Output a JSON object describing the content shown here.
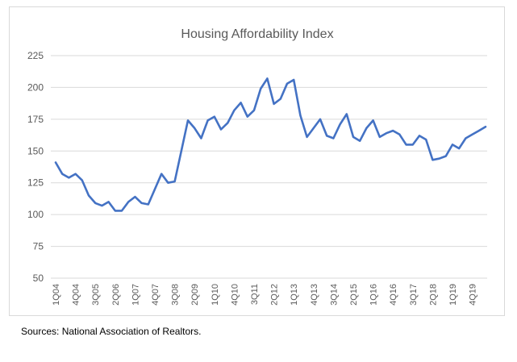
{
  "chart_data": {
    "type": "line",
    "title": "Housing Affordability Index",
    "xlabel": "",
    "ylabel": "",
    "ylim": [
      50,
      225
    ],
    "yticks": [
      50,
      75,
      100,
      125,
      150,
      175,
      200,
      225
    ],
    "grid": true,
    "legend": "none",
    "line_color": "#4472c4",
    "categories": [
      "1Q04",
      "2Q04",
      "3Q04",
      "4Q04",
      "1Q05",
      "2Q05",
      "3Q05",
      "4Q05",
      "1Q06",
      "2Q06",
      "3Q06",
      "4Q06",
      "1Q07",
      "2Q07",
      "3Q07",
      "4Q07",
      "1Q08",
      "2Q08",
      "3Q08",
      "4Q08",
      "1Q09",
      "2Q09",
      "3Q09",
      "4Q09",
      "1Q10",
      "2Q10",
      "3Q10",
      "4Q10",
      "1Q11",
      "2Q11",
      "3Q11",
      "4Q11",
      "1Q12",
      "2Q12",
      "3Q12",
      "4Q12",
      "1Q13",
      "2Q13",
      "3Q13",
      "4Q13",
      "1Q14",
      "2Q14",
      "3Q14",
      "4Q14",
      "1Q15",
      "2Q15",
      "3Q15",
      "4Q15",
      "1Q16",
      "2Q16",
      "3Q16",
      "4Q16",
      "1Q17",
      "2Q17",
      "3Q17",
      "4Q17",
      "1Q18",
      "2Q18",
      "3Q18",
      "4Q18",
      "1Q19",
      "2Q19",
      "3Q19",
      "4Q19",
      "1Q20",
      "2Q20"
    ],
    "tick_labels": [
      "1Q04",
      "4Q04",
      "3Q05",
      "2Q06",
      "1Q07",
      "4Q07",
      "3Q08",
      "2Q09",
      "1Q10",
      "4Q10",
      "3Q11",
      "2Q12",
      "1Q13",
      "4Q13",
      "3Q14",
      "2Q15",
      "1Q16",
      "4Q16",
      "3Q17",
      "2Q18",
      "1Q19",
      "4Q19"
    ],
    "series": [
      {
        "name": "Housing Affordability Index",
        "values": [
          141,
          132,
          129,
          132,
          127,
          115,
          109,
          107,
          110,
          103,
          103,
          110,
          114,
          109,
          108,
          120,
          132,
          125,
          126,
          150,
          174,
          168,
          160,
          174,
          177,
          167,
          172,
          182,
          188,
          177,
          182,
          199,
          207,
          187,
          191,
          203,
          206,
          178,
          161,
          168,
          175,
          162,
          160,
          171,
          179,
          161,
          158,
          168,
          174,
          161,
          164,
          166,
          163,
          155,
          155,
          162,
          159,
          143,
          144,
          146,
          155,
          152,
          160,
          163,
          166,
          169
        ]
      }
    ]
  },
  "source_note": "Sources: National Association of Realtors."
}
